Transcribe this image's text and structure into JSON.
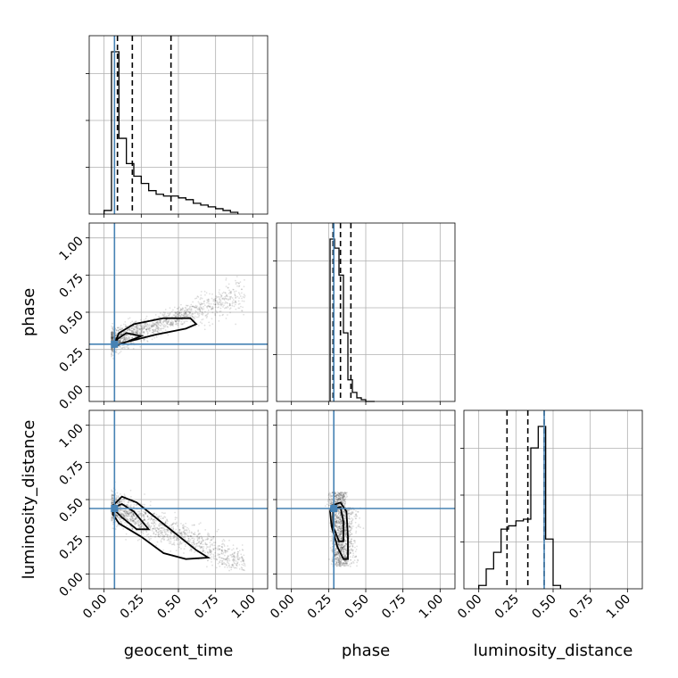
{
  "chart_data": {
    "type": "corner",
    "parameters": [
      "geocent_time",
      "phase",
      "luminosity_distance"
    ],
    "axis_labels": {
      "geocent_time": "geocent_time",
      "phase": "phase",
      "luminosity_distance": "luminosity_distance"
    },
    "range": [
      -0.1,
      1.1
    ],
    "ticks": [
      0.0,
      0.25,
      0.5,
      0.75,
      1.0
    ],
    "tick_labels": [
      "0.00",
      "0.25",
      "0.50",
      "0.75",
      "1.00"
    ],
    "grid": true,
    "colors": {
      "truth": "#4682b4",
      "histogram": "#000000",
      "quantile": "#000000"
    },
    "truths": {
      "geocent_time": 0.07,
      "phase": 0.285,
      "luminosity_distance": 0.44
    },
    "histograms": {
      "geocent_time": {
        "edges": [
          0.0,
          0.05,
          0.1,
          0.15,
          0.2,
          0.25,
          0.3,
          0.35,
          0.4,
          0.45,
          0.5,
          0.55,
          0.6,
          0.65,
          0.7,
          0.75,
          0.8,
          0.85,
          0.9
        ],
        "counts": [
          0.02,
          0.9,
          0.42,
          0.28,
          0.21,
          0.17,
          0.13,
          0.11,
          0.1,
          0.1,
          0.09,
          0.08,
          0.06,
          0.05,
          0.04,
          0.03,
          0.02,
          0.01
        ],
        "quantiles": [
          0.09,
          0.19,
          0.45
        ]
      },
      "phase": {
        "edges": [
          0.26,
          0.29,
          0.32,
          0.35,
          0.38,
          0.41,
          0.44,
          0.47,
          0.5,
          0.53,
          0.56
        ],
        "counts": [
          0.9,
          0.85,
          0.7,
          0.38,
          0.12,
          0.05,
          0.02,
          0.01,
          0.0,
          0.0
        ],
        "quantiles": [
          0.28,
          0.33,
          0.4
        ]
      },
      "luminosity_distance": {
        "edges": [
          0.0,
          0.05,
          0.1,
          0.15,
          0.2,
          0.25,
          0.3,
          0.35,
          0.4,
          0.45,
          0.5,
          0.55
        ],
        "counts": [
          0.02,
          0.12,
          0.22,
          0.36,
          0.38,
          0.41,
          0.42,
          0.85,
          0.98,
          0.3,
          0.02
        ],
        "quantiles": [
          0.19,
          0.33,
          0.44
        ]
      }
    },
    "sample_clouds": {
      "phase_vs_geocent_time": {
        "relation": "phase ≈ 0.29 + 0.35 × geocent_time",
        "x_range": [
          0.05,
          0.95
        ],
        "y_range": [
          0.25,
          0.75
        ]
      },
      "luminosity_distance_vs_geocent_time": {
        "relation": "luminosity_distance ≈ 0.47 − 0.42 × geocent_time",
        "x_range": [
          0.05,
          0.95
        ],
        "y_range": [
          0.05,
          0.58
        ]
      },
      "luminosity_distance_vs_phase": {
        "x_range": [
          0.25,
          0.55
        ],
        "y_range": [
          0.05,
          0.58
        ]
      }
    },
    "contours": {
      "phase_vs_geocent_time": [
        [
          [
            0.07,
            0.27
          ],
          [
            0.15,
            0.3
          ],
          [
            0.35,
            0.35
          ],
          [
            0.55,
            0.39
          ],
          [
            0.62,
            0.42
          ],
          [
            0.58,
            0.46
          ],
          [
            0.4,
            0.46
          ],
          [
            0.2,
            0.42
          ],
          [
            0.1,
            0.36
          ],
          [
            0.07,
            0.29
          ]
        ],
        [
          [
            0.08,
            0.28
          ],
          [
            0.15,
            0.3
          ],
          [
            0.25,
            0.34
          ],
          [
            0.15,
            0.36
          ],
          [
            0.09,
            0.32
          ]
        ]
      ],
      "luminosity_distance_vs_geocent_time": [
        [
          [
            0.06,
            0.46
          ],
          [
            0.12,
            0.52
          ],
          [
            0.22,
            0.48
          ],
          [
            0.42,
            0.32
          ],
          [
            0.62,
            0.16
          ],
          [
            0.7,
            0.11
          ],
          [
            0.55,
            0.1
          ],
          [
            0.4,
            0.14
          ],
          [
            0.25,
            0.25
          ],
          [
            0.1,
            0.34
          ],
          [
            0.06,
            0.4
          ]
        ],
        [
          [
            0.07,
            0.45
          ],
          [
            0.12,
            0.47
          ],
          [
            0.2,
            0.42
          ],
          [
            0.3,
            0.3
          ],
          [
            0.22,
            0.3
          ],
          [
            0.12,
            0.38
          ],
          [
            0.08,
            0.42
          ]
        ]
      ],
      "luminosity_distance_vs_phase": [
        [
          [
            0.27,
            0.46
          ],
          [
            0.33,
            0.48
          ],
          [
            0.37,
            0.42
          ],
          [
            0.38,
            0.25
          ],
          [
            0.38,
            0.1
          ],
          [
            0.35,
            0.1
          ],
          [
            0.31,
            0.18
          ],
          [
            0.27,
            0.32
          ],
          [
            0.26,
            0.42
          ]
        ],
        [
          [
            0.28,
            0.44
          ],
          [
            0.33,
            0.45
          ],
          [
            0.35,
            0.35
          ],
          [
            0.35,
            0.22
          ],
          [
            0.32,
            0.22
          ],
          [
            0.28,
            0.32
          ]
        ]
      ]
    }
  }
}
